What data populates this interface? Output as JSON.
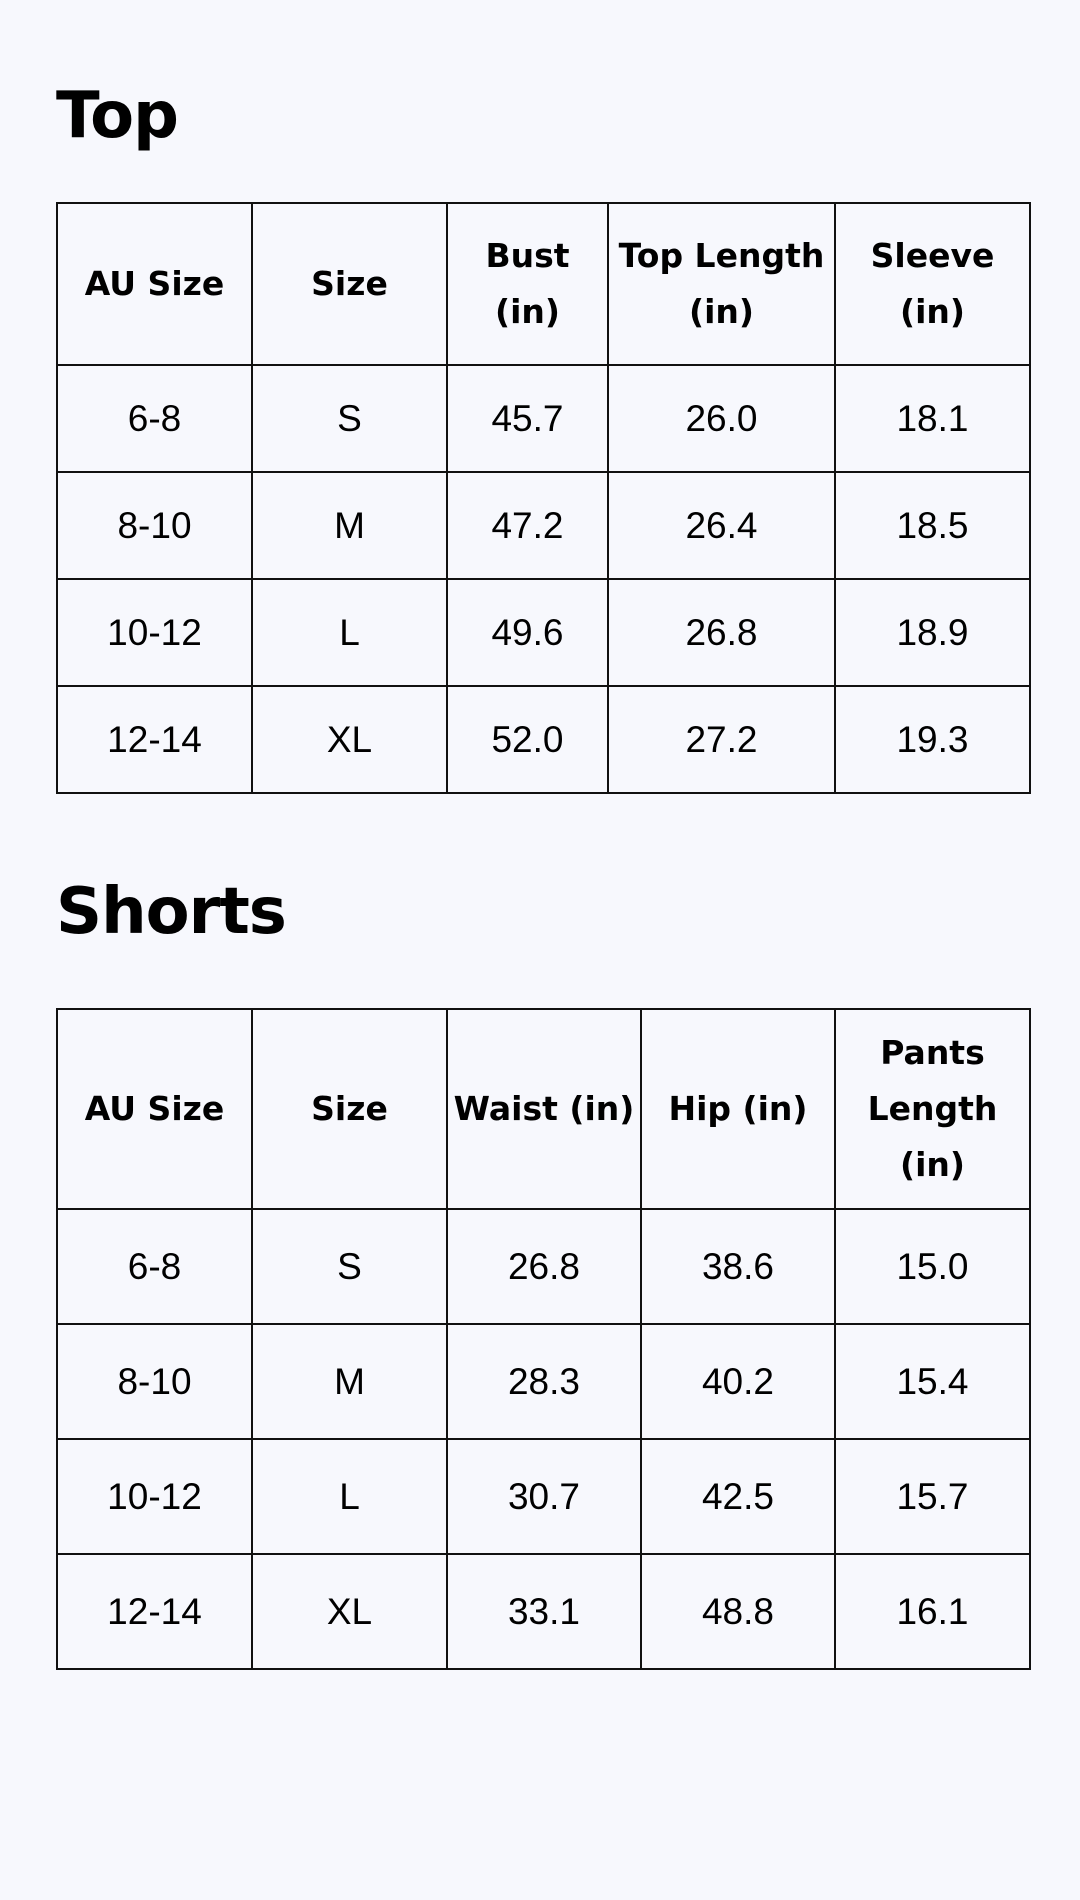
{
  "top": {
    "title": "Top",
    "headers": [
      "AU Size",
      "Size",
      "Bust (in)",
      "Top Length (in)",
      "Sleeve (in)"
    ],
    "rows": [
      [
        "6-8",
        "S",
        "45.7",
        "26.0",
        "18.1"
      ],
      [
        "8-10",
        "M",
        "47.2",
        "26.4",
        "18.5"
      ],
      [
        "10-12",
        "L",
        "49.6",
        "26.8",
        "18.9"
      ],
      [
        "12-14",
        "XL",
        "52.0",
        "27.2",
        "19.3"
      ]
    ]
  },
  "shorts": {
    "title": "Shorts",
    "headers": [
      "AU Size",
      "Size",
      "Waist (in)",
      "Hip (in)",
      "Pants Length (in)"
    ],
    "rows": [
      [
        "6-8",
        "S",
        "26.8",
        "38.6",
        "15.0"
      ],
      [
        "8-10",
        "M",
        "28.3",
        "40.2",
        "15.4"
      ],
      [
        "10-12",
        "L",
        "30.7",
        "42.5",
        "15.7"
      ],
      [
        "12-14",
        "XL",
        "33.1",
        "48.8",
        "16.1"
      ]
    ]
  }
}
